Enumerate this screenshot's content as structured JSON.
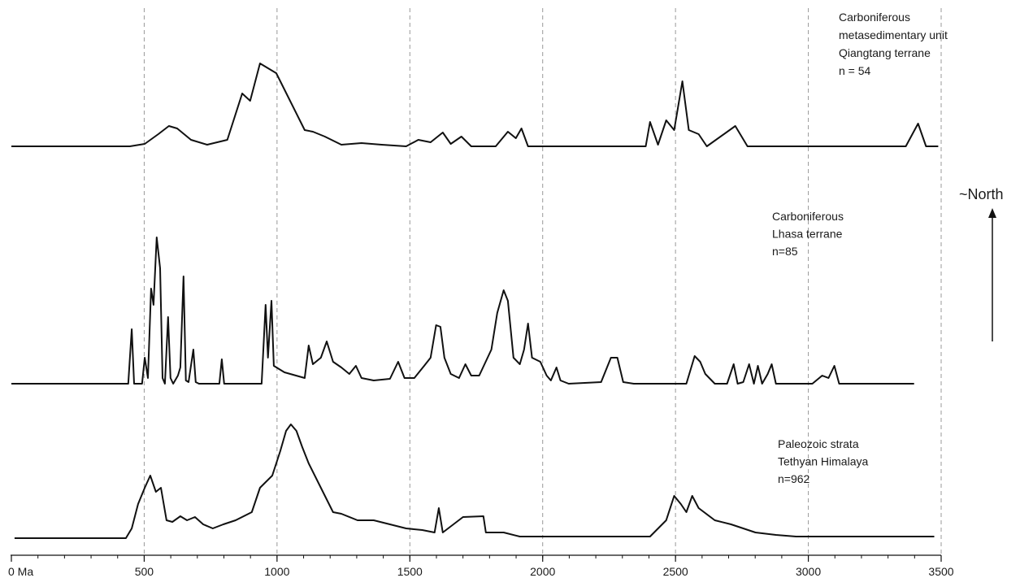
{
  "chart_data": {
    "type": "line",
    "xlim": [
      0,
      3500
    ],
    "xticks": [
      {
        "value": 0,
        "label": "0 Ma"
      },
      500,
      1000,
      1500,
      2000,
      2500,
      3000,
      3500
    ],
    "xminorticks": [
      0,
      100,
      200,
      300,
      400,
      500,
      600,
      700,
      800,
      900,
      1000,
      1100,
      1200,
      1300,
      1400,
      1500,
      1600,
      1700,
      1800,
      1900,
      2000,
      2100,
      2200,
      2300,
      2400,
      2500,
      2600,
      2700,
      2800,
      2900,
      3000,
      3100,
      3200,
      3300,
      3400,
      3500
    ],
    "ylim": [
      0,
      200
    ],
    "grid": true,
    "annotation": "~North",
    "series": [
      {
        "label": [
          "Carboniferous",
          "metasedimentary unit",
          "Qiangtang terrane",
          "n = 54"
        ],
        "color": "#111111",
        "x": [
          0,
          446,
          502,
          553,
          593,
          624,
          676,
          737,
          813,
          869,
          899,
          936,
          997,
          1043,
          1104,
          1135,
          1180,
          1242,
          1318,
          1394,
          1486,
          1532,
          1578,
          1624,
          1654,
          1694,
          1731,
          1823,
          1869,
          1899,
          1920,
          1945,
          1991,
          2388,
          2404,
          2434,
          2465,
          2495,
          2526,
          2550,
          2587,
          2618,
          2725,
          2771,
          2832,
          3367,
          3413,
          3443,
          3489
        ],
        "values": [
          0,
          0,
          3,
          15,
          25,
          22,
          8,
          2,
          8,
          65,
          56,
          102,
          90,
          60,
          20,
          18,
          12,
          2,
          4,
          2,
          0,
          8,
          5,
          17,
          3,
          12,
          0,
          0,
          18,
          10,
          22,
          0,
          0,
          0,
          30,
          2,
          32,
          20,
          80,
          20,
          15,
          0,
          25,
          0,
          0,
          0,
          28,
          0,
          0
        ]
      },
      {
        "label": [
          "Carboniferous",
          "Lhasa terrane",
          "n=85"
        ],
        "color": "#111111",
        "x": [
          0,
          440,
          453,
          462,
          492,
          502,
          514,
          526,
          535,
          547,
          560,
          569,
          578,
          590,
          599,
          609,
          627,
          636,
          648,
          657,
          667,
          685,
          694,
          706,
          783,
          792,
          801,
          942,
          957,
          966,
          979,
          988,
          1028,
          1104,
          1119,
          1135,
          1165,
          1187,
          1211,
          1242,
          1272,
          1297,
          1318,
          1364,
          1425,
          1456,
          1480,
          1517,
          1554,
          1578,
          1599,
          1615,
          1630,
          1654,
          1685,
          1709,
          1731,
          1761,
          1807,
          1829,
          1853,
          1869,
          1890,
          1914,
          1930,
          1945,
          1960,
          1991,
          2015,
          2031,
          2052,
          2067,
          2098,
          2220,
          2257,
          2281,
          2303,
          2343,
          2541,
          2572,
          2593,
          2612,
          2648,
          2694,
          2719,
          2734,
          2755,
          2777,
          2795,
          2810,
          2826,
          2847,
          2862,
          2878,
          3015,
          3052,
          3076,
          3098,
          3116,
          3398
        ],
        "values": [
          0,
          0,
          67,
          0,
          0,
          32,
          7,
          117,
          97,
          180,
          142,
          7,
          0,
          82,
          7,
          0,
          10,
          20,
          132,
          4,
          2,
          42,
          2,
          0,
          0,
          30,
          0,
          0,
          97,
          32,
          102,
          22,
          14,
          7,
          47,
          24,
          32,
          52,
          27,
          20,
          12,
          22,
          7,
          4,
          6,
          27,
          7,
          7,
          22,
          32,
          72,
          70,
          32,
          12,
          7,
          24,
          10,
          10,
          42,
          87,
          115,
          102,
          32,
          24,
          42,
          74,
          32,
          27,
          10,
          4,
          20,
          4,
          0,
          2,
          32,
          32,
          2,
          0,
          0,
          34,
          27,
          12,
          0,
          0,
          24,
          0,
          2,
          24,
          0,
          22,
          0,
          12,
          24,
          0,
          0,
          10,
          7,
          22,
          0,
          0
        ]
      },
      {
        "label": [
          "Paleozoic strata",
          "Tethyan Himalaya",
          "n=962"
        ],
        "color": "#111111",
        "x": [
          12,
          431,
          453,
          477,
          502,
          523,
          544,
          563,
          584,
          606,
          636,
          661,
          691,
          722,
          758,
          798,
          844,
          905,
          936,
          982,
          1012,
          1034,
          1052,
          1073,
          1095,
          1119,
          1165,
          1211,
          1242,
          1303,
          1364,
          1425,
          1486,
          1547,
          1593,
          1609,
          1624,
          1700,
          1777,
          1786,
          1853,
          1914,
          2037,
          2159,
          2312,
          2404,
          2465,
          2495,
          2520,
          2541,
          2563,
          2587,
          2648,
          2709,
          2801,
          2878,
          2954,
          3474
        ],
        "values": [
          0,
          0,
          12,
          42,
          62,
          77,
          57,
          62,
          22,
          20,
          27,
          22,
          26,
          17,
          12,
          17,
          22,
          32,
          62,
          77,
          107,
          132,
          140,
          132,
          112,
          92,
          62,
          32,
          30,
          22,
          22,
          17,
          12,
          10,
          7,
          37,
          7,
          26,
          27,
          7,
          7,
          2,
          2,
          2,
          2,
          2,
          22,
          52,
          42,
          32,
          52,
          37,
          22,
          17,
          7,
          4,
          2,
          2
        ]
      }
    ]
  }
}
